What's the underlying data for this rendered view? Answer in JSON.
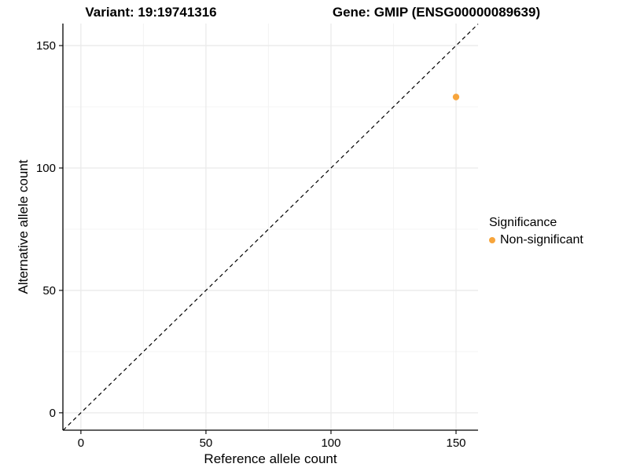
{
  "header": {
    "title_left": "Variant: 19:19741316",
    "title_right": "Gene: GMIP (ENSG00000089639)"
  },
  "chart_data": {
    "type": "scatter",
    "title": "Variant: 19:19741316   Gene: GMIP (ENSG00000089639)",
    "xlabel": "Reference allele count",
    "ylabel": "Alternative allele count",
    "xlim": [
      -7.2,
      158.8
    ],
    "ylim": [
      -7.1,
      159.0
    ],
    "xticks": [
      0,
      50,
      100,
      150
    ],
    "yticks": [
      0,
      50,
      100,
      150
    ],
    "xticks_minor": [
      25,
      75,
      125
    ],
    "yticks_minor": [
      25,
      75,
      125
    ],
    "grid": true,
    "reference_line": {
      "type": "identity",
      "slope": 1,
      "intercept": 0,
      "style": "dashed",
      "color": "#000000"
    },
    "series": [
      {
        "name": "Non-significant",
        "color": "#F7A53C",
        "points": [
          {
            "x": 150,
            "y": 129
          }
        ]
      }
    ],
    "legend": {
      "title": "Significance",
      "position": "right",
      "entries": [
        {
          "label": "Non-significant",
          "color": "#F7A53C"
        }
      ]
    }
  },
  "style": {
    "grid_major_color": "#EAEAEA",
    "grid_minor_color": "#F4F4F4",
    "axis_color": "#000000",
    "tick_label_color": "#000000",
    "point_radius": 4.2
  }
}
